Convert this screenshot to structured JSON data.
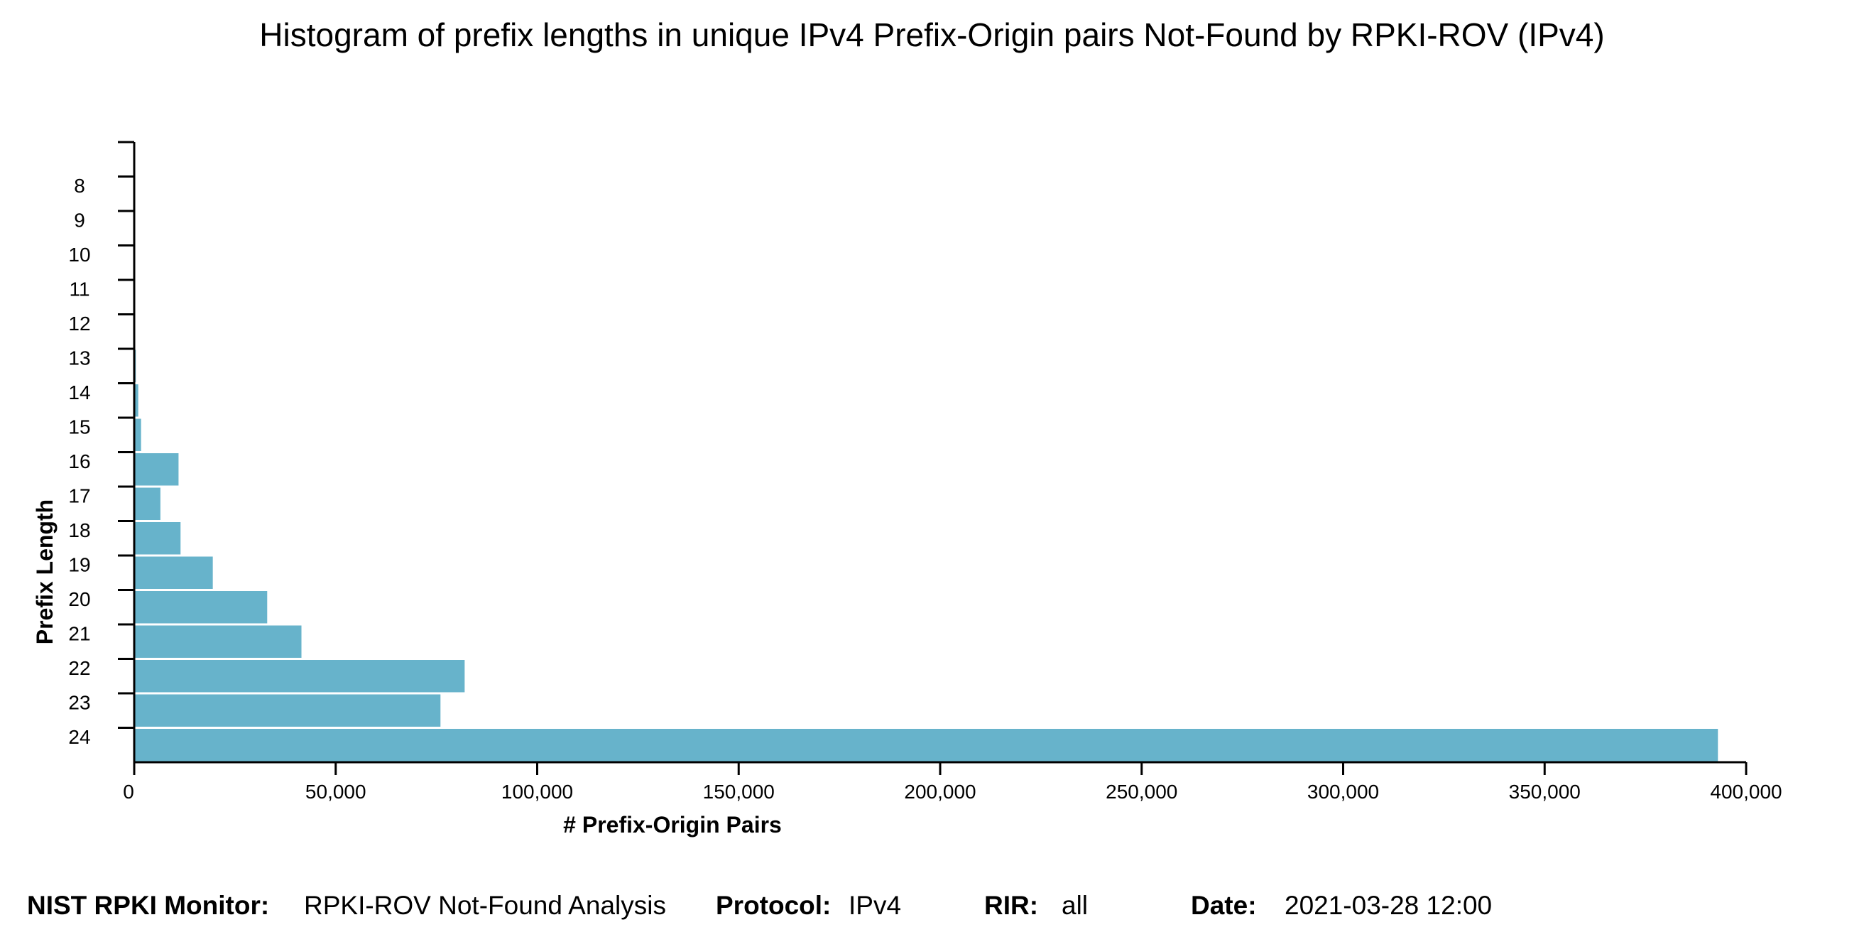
{
  "chart_data": {
    "type": "bar",
    "orientation": "horizontal",
    "title": "Histogram of prefix lengths in unique IPv4 Prefix-Origin pairs Not-Found by RPKI-ROV (IPv4)",
    "xlabel": "# Prefix-Origin Pairs",
    "ylabel": "Prefix Length",
    "categories": [
      "8",
      "9",
      "10",
      "11",
      "12",
      "13",
      "14",
      "15",
      "16",
      "17",
      "18",
      "19",
      "20",
      "21",
      "22",
      "23",
      "24"
    ],
    "values": [
      12,
      10,
      30,
      90,
      250,
      400,
      1000,
      1700,
      11000,
      6500,
      11500,
      19500,
      33000,
      41500,
      82000,
      76000,
      393000
    ],
    "x_ticks": [
      "0",
      "50,000",
      "100,000",
      "150,000",
      "200,000",
      "250,000",
      "300,000",
      "350,000",
      "400,000"
    ],
    "xlim": [
      0,
      400000
    ],
    "bar_color": "#67b3cb",
    "grid": false,
    "legend": "none"
  },
  "footer": {
    "monitor_label": "NIST RPKI Monitor:",
    "monitor_value": "RPKI-ROV Not-Found Analysis",
    "protocol_label": "Protocol:",
    "protocol_value": "IPv4",
    "rir_label": "RIR:",
    "rir_value": "all",
    "date_label": "Date:",
    "date_value": "2021-03-28 12:00"
  }
}
